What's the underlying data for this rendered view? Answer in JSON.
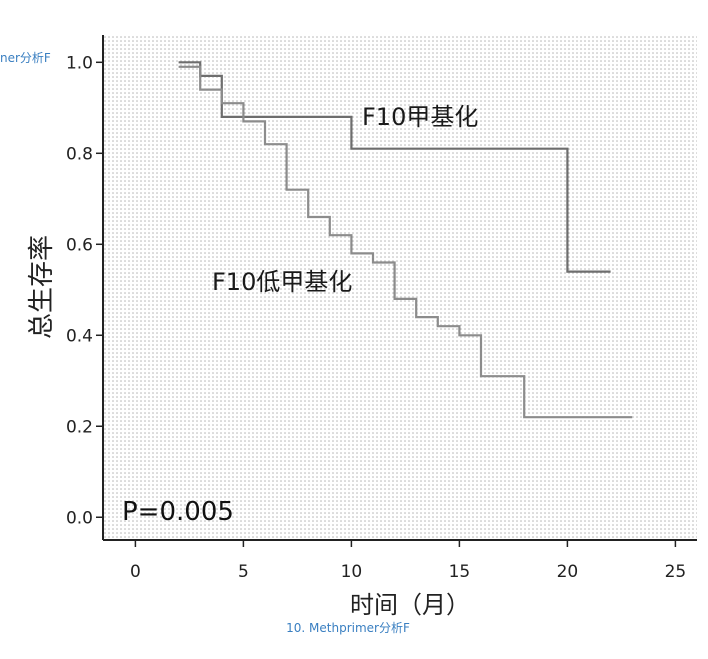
{
  "page": {
    "caption_top_left": "ner分析F",
    "caption_bottom": "10. Methprimer分析F"
  },
  "chart_data": {
    "type": "line",
    "subtype": "kaplan-meier-step",
    "xlabel": "时间（月）",
    "ylabel": "总生存率",
    "xlim": [
      -1.5,
      26
    ],
    "ylim": [
      -0.05,
      1.06
    ],
    "x_ticks": [
      "0",
      "5",
      "10",
      "15",
      "20",
      "25"
    ],
    "y_ticks": [
      "0.0",
      "0.2",
      "0.4",
      "0.6",
      "0.8",
      "1.0"
    ],
    "grid": false,
    "background": "dotted",
    "annotation": "P=0.005",
    "series": [
      {
        "name": "F10甲基化",
        "color": "#6e6e6e",
        "x": [
          2,
          3,
          3,
          4,
          4,
          10,
          10,
          20,
          20,
          22
        ],
        "y": [
          1.0,
          1.0,
          0.97,
          0.97,
          0.88,
          0.88,
          0.81,
          0.81,
          0.54,
          0.54
        ]
      },
      {
        "name": "F10低甲基化",
        "color": "#8c8c8c",
        "x": [
          2,
          3,
          3,
          4,
          4,
          5,
          5,
          6,
          6,
          7,
          7,
          8,
          8,
          9,
          9,
          10,
          10,
          11,
          11,
          12,
          12,
          13,
          13,
          14,
          14,
          15,
          15,
          16,
          16,
          18,
          18,
          23
        ],
        "y": [
          0.99,
          0.99,
          0.94,
          0.94,
          0.91,
          0.91,
          0.87,
          0.87,
          0.82,
          0.82,
          0.72,
          0.72,
          0.66,
          0.66,
          0.62,
          0.62,
          0.58,
          0.58,
          0.56,
          0.56,
          0.48,
          0.48,
          0.44,
          0.44,
          0.42,
          0.42,
          0.4,
          0.4,
          0.31,
          0.31,
          0.22,
          0.22
        ]
      }
    ]
  }
}
